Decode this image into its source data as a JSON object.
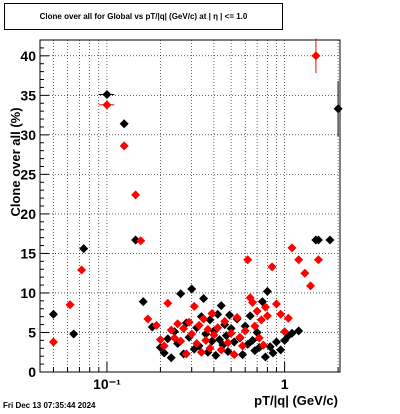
{
  "title": "Clone  over all for Global vs pT/|q| (GeV/c) at |  η  | <= 1.0",
  "timestamp": "Fri Dec 13 07:35:44 2024",
  "chart_data": {
    "type": "scatter",
    "xlabel": "pT/|q| (GeV/c)",
    "ylabel": "Clone  over all (%)",
    "xscale": "log",
    "xlim": [
      0.042,
      2.05
    ],
    "ylim": [
      0,
      42
    ],
    "xticks": [
      {
        "value": 0.1,
        "label": "10⁻¹"
      },
      {
        "value": 1,
        "label": "1"
      }
    ],
    "yticks": [
      0,
      5,
      10,
      15,
      20,
      25,
      30,
      35,
      40
    ],
    "grid": true,
    "legend": "none",
    "series": [
      {
        "color": "#000000",
        "marker": "diamond",
        "points": [
          {
            "x": 0.05,
            "y": 7.3
          },
          {
            "x": 0.065,
            "y": 4.8
          },
          {
            "x": 0.074,
            "y": 15.6
          },
          {
            "x": 0.1,
            "y": 35.1,
            "xerr": 0.01
          },
          {
            "x": 0.125,
            "y": 31.4
          },
          {
            "x": 0.145,
            "y": 16.7
          },
          {
            "x": 0.16,
            "y": 8.9
          },
          {
            "x": 0.18,
            "y": 5.7
          },
          {
            "x": 0.2,
            "y": 3.1
          },
          {
            "x": 0.21,
            "y": 2.4
          },
          {
            "x": 0.22,
            "y": 4.2
          },
          {
            "x": 0.23,
            "y": 1.8
          },
          {
            "x": 0.24,
            "y": 5.1
          },
          {
            "x": 0.25,
            "y": 3.6
          },
          {
            "x": 0.26,
            "y": 9.9
          },
          {
            "x": 0.27,
            "y": 2.3
          },
          {
            "x": 0.28,
            "y": 6.2
          },
          {
            "x": 0.29,
            "y": 4.4
          },
          {
            "x": 0.3,
            "y": 10.5
          },
          {
            "x": 0.31,
            "y": 2.9
          },
          {
            "x": 0.32,
            "y": 5.6
          },
          {
            "x": 0.33,
            "y": 3.3
          },
          {
            "x": 0.34,
            "y": 7.0
          },
          {
            "x": 0.35,
            "y": 9.3
          },
          {
            "x": 0.36,
            "y": 4.8
          },
          {
            "x": 0.37,
            "y": 2.5
          },
          {
            "x": 0.38,
            "y": 6.6
          },
          {
            "x": 0.39,
            "y": 3.9
          },
          {
            "x": 0.4,
            "y": 5.2
          },
          {
            "x": 0.41,
            "y": 2.1
          },
          {
            "x": 0.42,
            "y": 7.3
          },
          {
            "x": 0.43,
            "y": 4.1
          },
          {
            "x": 0.44,
            "y": 8.4
          },
          {
            "x": 0.45,
            "y": 3.4
          },
          {
            "x": 0.46,
            "y": 6.0
          },
          {
            "x": 0.47,
            "y": 4.6
          },
          {
            "x": 0.48,
            "y": 2.6
          },
          {
            "x": 0.49,
            "y": 7.2
          },
          {
            "x": 0.5,
            "y": 5.5
          },
          {
            "x": 0.52,
            "y": 3.8
          },
          {
            "x": 0.54,
            "y": 6.7
          },
          {
            "x": 0.56,
            "y": 4.3
          },
          {
            "x": 0.58,
            "y": 2.2
          },
          {
            "x": 0.6,
            "y": 5.8
          },
          {
            "x": 0.62,
            "y": 3.5
          },
          {
            "x": 0.64,
            "y": 7.1
          },
          {
            "x": 0.66,
            "y": 4.0
          },
          {
            "x": 0.68,
            "y": 2.7
          },
          {
            "x": 0.7,
            "y": 5.0
          },
          {
            "x": 0.72,
            "y": 3.1
          },
          {
            "x": 0.75,
            "y": 8.9
          },
          {
            "x": 0.78,
            "y": 1.9
          },
          {
            "x": 0.8,
            "y": 10.2
          },
          {
            "x": 0.83,
            "y": 3.2
          },
          {
            "x": 0.86,
            "y": 2.4
          },
          {
            "x": 0.9,
            "y": 3.8
          },
          {
            "x": 0.95,
            "y": 2.8
          },
          {
            "x": 1.0,
            "y": 4.0
          },
          {
            "x": 1.05,
            "y": 4.6
          },
          {
            "x": 1.1,
            "y": 4.9
          },
          {
            "x": 1.2,
            "y": 5.2
          },
          {
            "x": 1.5,
            "y": 16.7,
            "xerr": 0.08
          },
          {
            "x": 1.55,
            "y": 16.7,
            "xerr": 0.08
          },
          {
            "x": 1.8,
            "y": 16.7,
            "xerr": 0.1
          },
          {
            "x": 2.0,
            "y": 33.3,
            "yerr": 3.5
          }
        ]
      },
      {
        "color": "#ff0000",
        "marker": "diamond",
        "points": [
          {
            "x": 0.05,
            "y": 3.8
          },
          {
            "x": 0.062,
            "y": 8.5
          },
          {
            "x": 0.072,
            "y": 12.9
          },
          {
            "x": 0.1,
            "y": 33.8,
            "xerr": 0.01
          },
          {
            "x": 0.125,
            "y": 28.6
          },
          {
            "x": 0.145,
            "y": 22.4
          },
          {
            "x": 0.155,
            "y": 16.6
          },
          {
            "x": 0.17,
            "y": 6.7
          },
          {
            "x": 0.19,
            "y": 5.9
          },
          {
            "x": 0.2,
            "y": 4.1
          },
          {
            "x": 0.21,
            "y": 3.3
          },
          {
            "x": 0.22,
            "y": 8.7
          },
          {
            "x": 0.23,
            "y": 5.3
          },
          {
            "x": 0.24,
            "y": 4.3
          },
          {
            "x": 0.25,
            "y": 6.1
          },
          {
            "x": 0.26,
            "y": 3.9
          },
          {
            "x": 0.27,
            "y": 5.5
          },
          {
            "x": 0.28,
            "y": 2.3
          },
          {
            "x": 0.29,
            "y": 6.3
          },
          {
            "x": 0.3,
            "y": 4.8
          },
          {
            "x": 0.31,
            "y": 8.3
          },
          {
            "x": 0.32,
            "y": 3.6
          },
          {
            "x": 0.33,
            "y": 5.9
          },
          {
            "x": 0.34,
            "y": 2.5
          },
          {
            "x": 0.35,
            "y": 6.7
          },
          {
            "x": 0.36,
            "y": 4.0
          },
          {
            "x": 0.37,
            "y": 5.4
          },
          {
            "x": 0.38,
            "y": 3.0
          },
          {
            "x": 0.39,
            "y": 7.4
          },
          {
            "x": 0.4,
            "y": 4.7
          },
          {
            "x": 0.42,
            "y": 5.6
          },
          {
            "x": 0.44,
            "y": 2.8
          },
          {
            "x": 0.46,
            "y": 6.4
          },
          {
            "x": 0.48,
            "y": 3.7
          },
          {
            "x": 0.5,
            "y": 4.9
          },
          {
            "x": 0.52,
            "y": 2.2
          },
          {
            "x": 0.54,
            "y": 6.9
          },
          {
            "x": 0.56,
            "y": 4.4
          },
          {
            "x": 0.58,
            "y": 3.3
          },
          {
            "x": 0.6,
            "y": 5.2
          },
          {
            "x": 0.62,
            "y": 14.2
          },
          {
            "x": 0.64,
            "y": 9.4
          },
          {
            "x": 0.66,
            "y": 8.8
          },
          {
            "x": 0.68,
            "y": 5.8
          },
          {
            "x": 0.7,
            "y": 7.7
          },
          {
            "x": 0.72,
            "y": 4.3
          },
          {
            "x": 0.74,
            "y": 6.6
          },
          {
            "x": 0.76,
            "y": 3.4
          },
          {
            "x": 0.78,
            "y": 8.2
          },
          {
            "x": 0.8,
            "y": 7.1
          },
          {
            "x": 0.85,
            "y": 13.3
          },
          {
            "x": 0.9,
            "y": 8.6
          },
          {
            "x": 0.95,
            "y": 7.3
          },
          {
            "x": 1.0,
            "y": 5.1
          },
          {
            "x": 1.05,
            "y": 6.8
          },
          {
            "x": 1.1,
            "y": 15.7
          },
          {
            "x": 1.2,
            "y": 14.2
          },
          {
            "x": 1.3,
            "y": 12.5
          },
          {
            "x": 1.4,
            "y": 10.9
          },
          {
            "x": 1.5,
            "y": 40.0,
            "yerr": 2.2
          },
          {
            "x": 1.55,
            "y": 14.2,
            "xerr": 0.08
          }
        ]
      }
    ]
  }
}
